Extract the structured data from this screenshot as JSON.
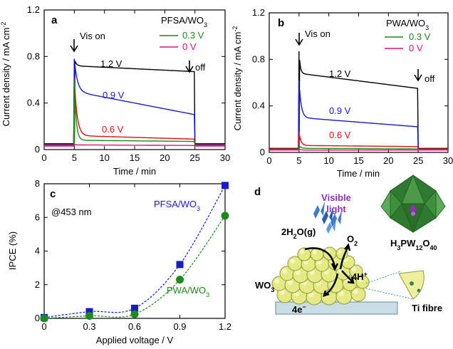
{
  "chart_data": [
    {
      "type": "line",
      "panel_label": "a",
      "legend_title": "PFSA/WO3",
      "xlabel": "Time / min",
      "ylabel": "Current density / mA cm-2",
      "xlim": [
        0,
        30
      ],
      "ylim": [
        0,
        1.2
      ],
      "x_ticks": [
        0,
        5,
        10,
        15,
        20,
        25,
        30
      ],
      "y_ticks": [
        0,
        0.4,
        0.8,
        1.2
      ],
      "annotations": [
        "Vis on",
        "off"
      ],
      "series": [
        {
          "name": "1.2 V",
          "color": "#000000",
          "dark": 0.05,
          "peak": 0.78,
          "plateau0": 0.72,
          "plateau_end": 0.67,
          "decay": 0.3
        },
        {
          "name": "0.9 V",
          "color": "#1a1acc",
          "dark": 0.045,
          "peak": 0.78,
          "plateau0": 0.5,
          "plateau_end": 0.3,
          "decay": 0.5
        },
        {
          "name": "0.6 V",
          "color": "#e01010",
          "dark": 0.04,
          "peak": 0.62,
          "plateau0": 0.12,
          "plateau_end": 0.09,
          "decay": 0.45
        },
        {
          "name": "0.3 V",
          "color": "#1a8a1a",
          "dark": 0.035,
          "peak": 0.6,
          "plateau0": 0.08,
          "plateau_end": 0.07,
          "decay": 0.3
        },
        {
          "name": "0 V",
          "color": "#e0107a",
          "dark": 0.03,
          "peak": 0.045,
          "plateau0": 0.04,
          "plateau_end": 0.035,
          "decay": 0.3
        }
      ]
    },
    {
      "type": "line",
      "panel_label": "b",
      "legend_title": "PWA/WO3",
      "xlabel": "Time / min",
      "ylabel": "Current density / mA cm-2",
      "xlim": [
        0,
        30
      ],
      "ylim": [
        0,
        1.2
      ],
      "x_ticks": [
        0,
        5,
        10,
        15,
        20,
        25,
        30
      ],
      "y_ticks": [
        0,
        0.4,
        0.8,
        1.2
      ],
      "annotations": [
        "Vis on",
        "off"
      ],
      "series": [
        {
          "name": "1.2 V",
          "color": "#000000",
          "dark": 0.035,
          "peak": 0.87,
          "plateau0": 0.68,
          "plateau_end": 0.55,
          "decay": 0.2
        },
        {
          "name": "0.9 V",
          "color": "#1a1acc",
          "dark": 0.03,
          "peak": 0.62,
          "plateau0": 0.3,
          "plateau_end": 0.22,
          "decay": 0.35
        },
        {
          "name": "0.6 V",
          "color": "#e01010",
          "dark": 0.03,
          "peak": 0.18,
          "plateau0": 0.06,
          "plateau_end": 0.05,
          "decay": 0.3
        },
        {
          "name": "0.3 V",
          "color": "#1a8a1a",
          "dark": 0.025,
          "peak": 0.06,
          "plateau0": 0.035,
          "plateau_end": 0.03,
          "decay": 0.3
        },
        {
          "name": "0 V",
          "color": "#e0107a",
          "dark": 0.02,
          "peak": 0.03,
          "plateau0": 0.02,
          "plateau_end": 0.02,
          "decay": 0.3
        }
      ]
    },
    {
      "type": "line",
      "panel_label": "c",
      "annotation": "@453 nm",
      "xlabel": "Applied voltage / V",
      "ylabel": "IPCE (%)",
      "xlim": [
        0,
        1.2
      ],
      "ylim": [
        0,
        8
      ],
      "x_ticks": [
        "0",
        "0.3",
        "0.6",
        "0.9",
        "1.2"
      ],
      "y_ticks": [
        "0",
        "2",
        "4",
        "6",
        "8"
      ],
      "x": [
        0,
        0.3,
        0.6,
        0.9,
        1.2
      ],
      "series": [
        {
          "name": "PFSA/WO3",
          "color": "#1a1acc",
          "marker": "square",
          "values": [
            0.05,
            0.4,
            0.6,
            3.2,
            7.9
          ]
        },
        {
          "name": "PWA/WO3",
          "color": "#1a8a1a",
          "marker": "circle",
          "values": [
            0.0,
            0.15,
            0.25,
            2.3,
            6.1
          ]
        }
      ]
    }
  ],
  "panel_d": {
    "label": "d",
    "visible_light": "Visible light",
    "water": "2H2O(g)",
    "oxygen": "O2",
    "protons": "4H+",
    "electrons": "4e−",
    "wo3": "WO3",
    "substrate": "Ti fibre",
    "hpa": "H3PW12O40"
  }
}
